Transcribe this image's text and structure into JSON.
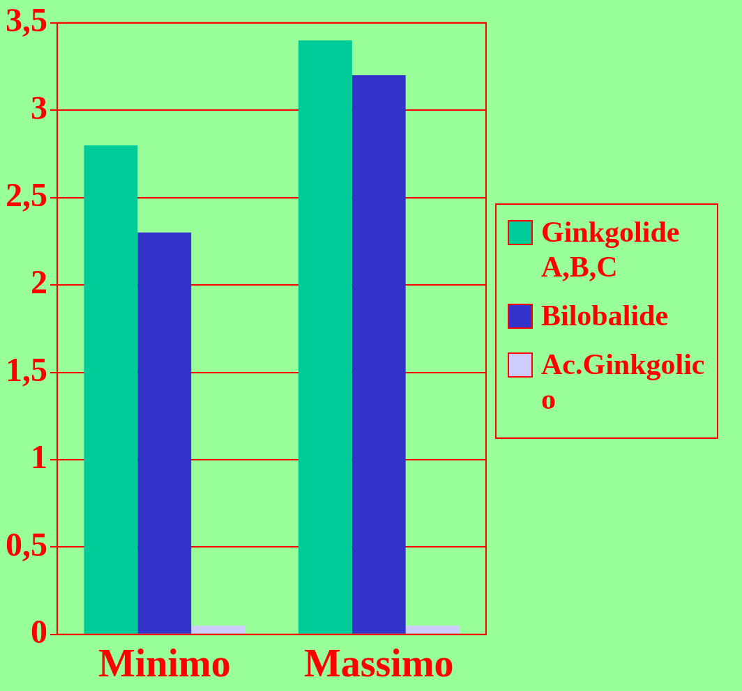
{
  "chart_data": {
    "type": "bar",
    "categories": [
      "Minimo",
      "Massimo"
    ],
    "series": [
      {
        "name": "Ginkgolide A,B,C",
        "color": "#00cc99",
        "values": [
          2.8,
          3.4
        ]
      },
      {
        "name": "Bilobalide",
        "color": "#3333cc",
        "values": [
          2.3,
          3.2
        ]
      },
      {
        "name": "Ac.Ginkgolico",
        "color": "#ccccff",
        "values": [
          0.05,
          0.05
        ]
      }
    ],
    "ylim": [
      0,
      3.5
    ],
    "yticks": [
      0,
      {
        "value": 0.5,
        "label": "0,5"
      },
      1,
      {
        "value": 1.5,
        "label": "1,5"
      },
      2,
      {
        "value": 2.5,
        "label": "2,5"
      },
      3,
      {
        "value": 3.5,
        "label": "3,5"
      }
    ],
    "grid": "y",
    "legend": "right"
  }
}
